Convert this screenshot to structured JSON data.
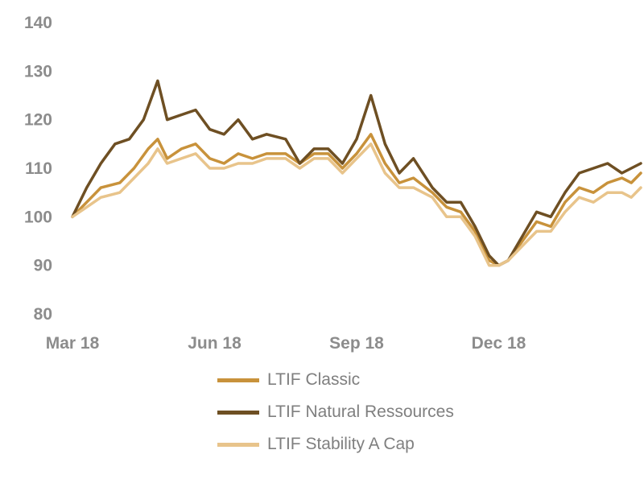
{
  "chart_data": {
    "type": "line",
    "title": "",
    "xlabel": "",
    "ylabel": "",
    "ylim": [
      80,
      140
    ],
    "yticks": [
      "140",
      "130",
      "120",
      "110",
      "100",
      "90",
      "80"
    ],
    "xlim": [
      0,
      12
    ],
    "xticks": [
      {
        "label": "Mar 18",
        "x": 0
      },
      {
        "label": "Jun 18",
        "x": 3
      },
      {
        "label": "Sep 18",
        "x": 6
      },
      {
        "label": "Dec 18",
        "x": 9
      }
    ],
    "legend_position": "bottom",
    "series": [
      {
        "name": "LTIF Classic",
        "color": "#c8923b",
        "points": [
          [
            0,
            100
          ],
          [
            0.3,
            103
          ],
          [
            0.6,
            106
          ],
          [
            1.0,
            107
          ],
          [
            1.3,
            110
          ],
          [
            1.6,
            114
          ],
          [
            1.8,
            116
          ],
          [
            2.0,
            112
          ],
          [
            2.3,
            114
          ],
          [
            2.6,
            115
          ],
          [
            2.9,
            112
          ],
          [
            3.2,
            111
          ],
          [
            3.5,
            113
          ],
          [
            3.8,
            112
          ],
          [
            4.1,
            113
          ],
          [
            4.5,
            113
          ],
          [
            4.8,
            111
          ],
          [
            5.1,
            113
          ],
          [
            5.4,
            113
          ],
          [
            5.7,
            110
          ],
          [
            6.0,
            113
          ],
          [
            6.3,
            117
          ],
          [
            6.6,
            111
          ],
          [
            6.9,
            107
          ],
          [
            7.2,
            108
          ],
          [
            7.6,
            105
          ],
          [
            7.9,
            102
          ],
          [
            8.2,
            101
          ],
          [
            8.5,
            97
          ],
          [
            8.8,
            91
          ],
          [
            9.0,
            90
          ],
          [
            9.2,
            91
          ],
          [
            9.5,
            95
          ],
          [
            9.8,
            99
          ],
          [
            10.1,
            98
          ],
          [
            10.4,
            103
          ],
          [
            10.7,
            106
          ],
          [
            11.0,
            105
          ],
          [
            11.3,
            107
          ],
          [
            11.6,
            108
          ],
          [
            11.8,
            107
          ],
          [
            12.0,
            109
          ]
        ]
      },
      {
        "name": "LTIF Natural Ressources",
        "color": "#6e4f23",
        "points": [
          [
            0,
            100
          ],
          [
            0.3,
            106
          ],
          [
            0.6,
            111
          ],
          [
            0.9,
            115
          ],
          [
            1.2,
            116
          ],
          [
            1.5,
            120
          ],
          [
            1.8,
            128
          ],
          [
            2.0,
            120
          ],
          [
            2.3,
            121
          ],
          [
            2.6,
            122
          ],
          [
            2.9,
            118
          ],
          [
            3.2,
            117
          ],
          [
            3.5,
            120
          ],
          [
            3.8,
            116
          ],
          [
            4.1,
            117
          ],
          [
            4.5,
            116
          ],
          [
            4.8,
            111
          ],
          [
            5.1,
            114
          ],
          [
            5.4,
            114
          ],
          [
            5.7,
            111
          ],
          [
            6.0,
            116
          ],
          [
            6.3,
            125
          ],
          [
            6.6,
            115
          ],
          [
            6.9,
            109
          ],
          [
            7.2,
            112
          ],
          [
            7.6,
            106
          ],
          [
            7.9,
            103
          ],
          [
            8.2,
            103
          ],
          [
            8.5,
            98
          ],
          [
            8.8,
            92
          ],
          [
            9.0,
            90
          ],
          [
            9.2,
            91
          ],
          [
            9.5,
            96
          ],
          [
            9.8,
            101
          ],
          [
            10.1,
            100
          ],
          [
            10.4,
            105
          ],
          [
            10.7,
            109
          ],
          [
            11.0,
            110
          ],
          [
            11.3,
            111
          ],
          [
            11.6,
            109
          ],
          [
            11.8,
            110
          ],
          [
            12.0,
            111
          ]
        ]
      },
      {
        "name": "LTIF Stability A Cap",
        "color": "#e8c48b",
        "points": [
          [
            0,
            100
          ],
          [
            0.3,
            102
          ],
          [
            0.6,
            104
          ],
          [
            1.0,
            105
          ],
          [
            1.3,
            108
          ],
          [
            1.6,
            111
          ],
          [
            1.8,
            114
          ],
          [
            2.0,
            111
          ],
          [
            2.3,
            112
          ],
          [
            2.6,
            113
          ],
          [
            2.9,
            110
          ],
          [
            3.2,
            110
          ],
          [
            3.5,
            111
          ],
          [
            3.8,
            111
          ],
          [
            4.1,
            112
          ],
          [
            4.5,
            112
          ],
          [
            4.8,
            110
          ],
          [
            5.1,
            112
          ],
          [
            5.4,
            112
          ],
          [
            5.7,
            109
          ],
          [
            6.0,
            112
          ],
          [
            6.3,
            115
          ],
          [
            6.6,
            109
          ],
          [
            6.9,
            106
          ],
          [
            7.2,
            106
          ],
          [
            7.6,
            104
          ],
          [
            7.9,
            100
          ],
          [
            8.2,
            100
          ],
          [
            8.5,
            96
          ],
          [
            8.8,
            90
          ],
          [
            9.0,
            90
          ],
          [
            9.2,
            91
          ],
          [
            9.5,
            94
          ],
          [
            9.8,
            97
          ],
          [
            10.1,
            97
          ],
          [
            10.4,
            101
          ],
          [
            10.7,
            104
          ],
          [
            11.0,
            103
          ],
          [
            11.3,
            105
          ],
          [
            11.6,
            105
          ],
          [
            11.8,
            104
          ],
          [
            12.0,
            106
          ]
        ]
      }
    ]
  }
}
